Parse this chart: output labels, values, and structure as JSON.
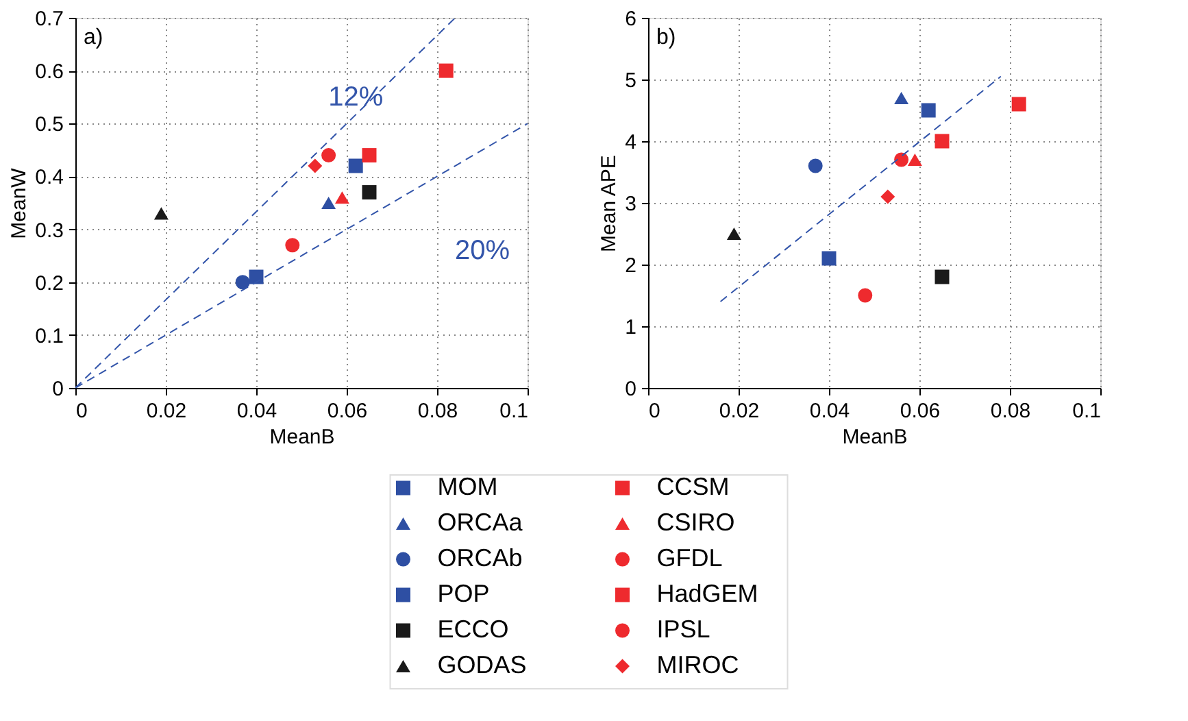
{
  "chart_data": [
    {
      "type": "scatter",
      "xlabel": "MeanB",
      "ylabel": "MeanW",
      "xlim": [
        0,
        0.1
      ],
      "ylim": [
        0,
        0.7
      ],
      "xticks": [
        0,
        0.02,
        0.04,
        0.06,
        0.08,
        0.1
      ],
      "yticks": [
        0,
        0.1,
        0.2,
        0.3,
        0.4,
        0.5,
        0.6,
        0.7
      ],
      "grid": true,
      "legend": "bottom",
      "annotations": [
        "a)",
        "12%",
        "20%"
      ],
      "series": [
        {
          "name": "MOM",
          "color": "#2e4fa3",
          "marker": "square",
          "x": [
            0.062
          ],
          "values": [
            0.42
          ]
        },
        {
          "name": "ORCAa",
          "color": "#2e4fa3",
          "marker": "triangle",
          "x": [
            0.056
          ],
          "values": [
            0.35
          ]
        },
        {
          "name": "ORCAb",
          "color": "#2e4fa3",
          "marker": "circle",
          "x": [
            0.037
          ],
          "values": [
            0.2
          ]
        },
        {
          "name": "POP",
          "color": "#2e4fa3",
          "marker": "square",
          "x": [
            0.04
          ],
          "values": [
            0.21
          ]
        },
        {
          "name": "ECCO",
          "color": "#1a1a1a",
          "marker": "square",
          "x": [
            0.065
          ],
          "values": [
            0.37
          ]
        },
        {
          "name": "GODAS",
          "color": "#1a1a1a",
          "marker": "triangle",
          "x": [
            0.019
          ],
          "values": [
            0.33
          ]
        },
        {
          "name": "CCSM",
          "color": "#ee2a2e",
          "marker": "square",
          "x": [
            0.065
          ],
          "values": [
            0.44
          ]
        },
        {
          "name": "CSIRO",
          "color": "#ee2a2e",
          "marker": "triangle",
          "x": [
            0.059
          ],
          "values": [
            0.36
          ]
        },
        {
          "name": "GFDL",
          "color": "#ee2a2e",
          "marker": "circle",
          "x": [
            0.056
          ],
          "values": [
            0.44
          ]
        },
        {
          "name": "HadGEM",
          "color": "#ee2a2e",
          "marker": "square",
          "x": [
            0.082
          ],
          "values": [
            0.6
          ]
        },
        {
          "name": "IPSL",
          "color": "#ee2a2e",
          "marker": "circle",
          "x": [
            0.048
          ],
          "values": [
            0.27
          ]
        },
        {
          "name": "MIROC",
          "color": "#ee2a2e",
          "marker": "diamond",
          "x": [
            0.053
          ],
          "values": [
            0.42
          ]
        },
        {
          "type": "line",
          "color": "#3355aa",
          "line_style": "dashed",
          "x": [
            0,
            0.084
          ],
          "values": [
            0,
            0.7
          ]
        },
        {
          "type": "line",
          "color": "#3355aa",
          "line_style": "dashed",
          "x": [
            0,
            0.1
          ],
          "values": [
            0,
            0.5
          ]
        }
      ]
    },
    {
      "type": "scatter",
      "xlabel": "MeanB",
      "ylabel": "Mean APE",
      "xlim": [
        0,
        0.1
      ],
      "ylim": [
        0,
        6
      ],
      "xticks": [
        0,
        0.02,
        0.04,
        0.06,
        0.08,
        0.1
      ],
      "yticks": [
        0,
        1,
        2,
        3,
        4,
        5,
        6
      ],
      "grid": true,
      "annotations": [
        "b)"
      ],
      "legend": "bottom",
      "series": [
        {
          "name": "MOM",
          "color": "#2e4fa3",
          "marker": "square",
          "x": [
            0.062
          ],
          "values": [
            4.5
          ]
        },
        {
          "name": "ORCAa",
          "color": "#2e4fa3",
          "marker": "triangle",
          "x": [
            0.056
          ],
          "values": [
            4.7
          ]
        },
        {
          "name": "ORCAb",
          "color": "#2e4fa3",
          "marker": "circle",
          "x": [
            0.037
          ],
          "values": [
            3.6
          ]
        },
        {
          "name": "POP",
          "color": "#2e4fa3",
          "marker": "square",
          "x": [
            0.04
          ],
          "values": [
            2.1
          ]
        },
        {
          "name": "ECCO",
          "color": "#1a1a1a",
          "marker": "square",
          "x": [
            0.065
          ],
          "values": [
            1.8
          ]
        },
        {
          "name": "GODAS",
          "color": "#1a1a1a",
          "marker": "triangle",
          "x": [
            0.019
          ],
          "values": [
            2.5
          ]
        },
        {
          "name": "CCSM",
          "color": "#ee2a2e",
          "marker": "square",
          "x": [
            0.065
          ],
          "values": [
            4.0
          ]
        },
        {
          "name": "CSIRO",
          "color": "#ee2a2e",
          "marker": "triangle",
          "x": [
            0.059
          ],
          "values": [
            3.7
          ]
        },
        {
          "name": "GFDL",
          "color": "#ee2a2e",
          "marker": "circle",
          "x": [
            0.056
          ],
          "values": [
            3.7
          ]
        },
        {
          "name": "HadGEM",
          "color": "#ee2a2e",
          "marker": "square",
          "x": [
            0.082
          ],
          "values": [
            4.6
          ]
        },
        {
          "name": "IPSL",
          "color": "#ee2a2e",
          "marker": "circle",
          "x": [
            0.048
          ],
          "values": [
            1.5
          ]
        },
        {
          "name": "MIROC",
          "color": "#ee2a2e",
          "marker": "diamond",
          "x": [
            0.053
          ],
          "values": [
            3.1
          ]
        },
        {
          "type": "line",
          "color": "#3355aa",
          "line_style": "dashed",
          "x": [
            0.016,
            0.078
          ],
          "values": [
            1.4,
            5.05
          ]
        }
      ]
    }
  ]
}
